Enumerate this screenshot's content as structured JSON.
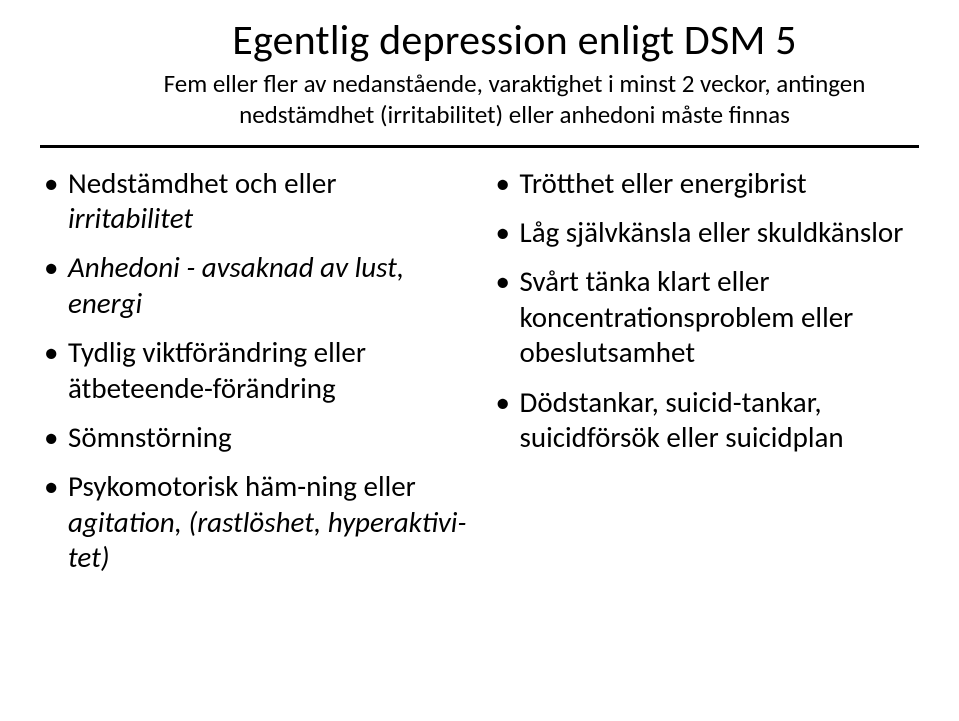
{
  "title": "Egentlig depression enligt DSM 5",
  "subtitle_line1": "Fem eller fler av nedanstående, varaktighet i minst 2 veckor, antingen",
  "subtitle_line2": "nedstämdhet (irritabilitet) eller anhedoni måste finnas",
  "left": {
    "b1_a": "Nedstämdhet och eller ",
    "b1_b": "irritabilitet",
    "b2_a": "Anhedoni - avsaknad av lust, energi",
    "b3_a": "Tydlig viktförändring eller ätbeteende-förändring",
    "b4_a": "Sömnstörning",
    "b5_a": "Psykomotorisk häm-ning eller ",
    "b5_b": "agitation, (rastlöshet, hyperaktivi-tet)"
  },
  "right": {
    "b1": "Trötthet eller energibrist",
    "b2": "Låg självkänsla eller skuldkänslor",
    "b3": "Svårt tänka klart eller koncentrationsproblem eller obeslutsamhet",
    "b4": "Dödstankar, suicid-tankar, suicidförsök eller suicidplan"
  },
  "colors": {
    "text": "#000000",
    "background": "#ffffff",
    "divider": "#000000"
  },
  "typography": {
    "title_fontsize": 42,
    "subtitle_fontsize": 25,
    "bullet_fontsize": 29,
    "font_family": "Calibri"
  }
}
